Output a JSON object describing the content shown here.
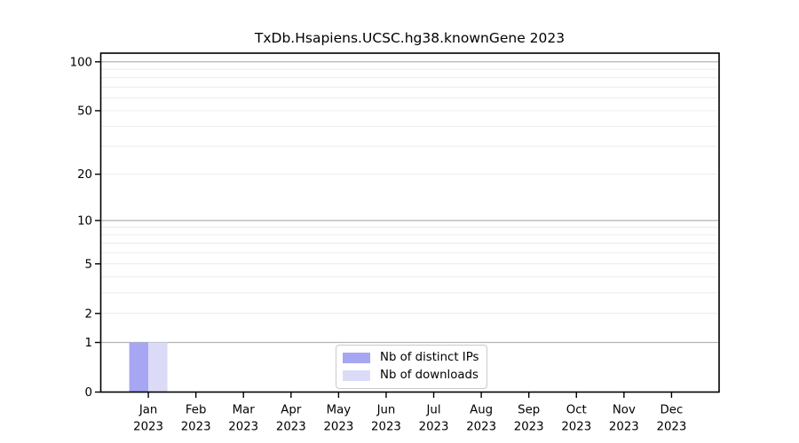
{
  "figure_title": "TxDb.Hsapiens.UCSC.hg38.knownGene 2023",
  "chart_data": {
    "type": "bar",
    "title": "TxDb.Hsapiens.UCSC.hg38.knownGene 2023",
    "categories": [
      "Jan 2023",
      "Feb 2023",
      "Mar 2023",
      "Apr 2023",
      "May 2023",
      "Jun 2023",
      "Jul 2023",
      "Aug 2023",
      "Sep 2023",
      "Oct 2023",
      "Nov 2023",
      "Dec 2023"
    ],
    "x_tick_labels": [
      {
        "month": "Jan",
        "year": "2023"
      },
      {
        "month": "Feb",
        "year": "2023"
      },
      {
        "month": "Mar",
        "year": "2023"
      },
      {
        "month": "Apr",
        "year": "2023"
      },
      {
        "month": "May",
        "year": "2023"
      },
      {
        "month": "Jun",
        "year": "2023"
      },
      {
        "month": "Jul",
        "year": "2023"
      },
      {
        "month": "Aug",
        "year": "2023"
      },
      {
        "month": "Sep",
        "year": "2023"
      },
      {
        "month": "Oct",
        "year": "2023"
      },
      {
        "month": "Nov",
        "year": "2023"
      },
      {
        "month": "Dec",
        "year": "2023"
      }
    ],
    "series": [
      {
        "name": "Nb of distinct IPs",
        "color": "#a6a6f2",
        "values": [
          1,
          0,
          0,
          0,
          0,
          0,
          0,
          0,
          0,
          0,
          0,
          0
        ]
      },
      {
        "name": "Nb of downloads",
        "color": "#dbdbf8",
        "values": [
          1,
          0,
          0,
          0,
          0,
          0,
          0,
          0,
          0,
          0,
          0,
          0
        ]
      }
    ],
    "xlabel": "",
    "ylabel": "",
    "yscale": "log1p",
    "ylim": [
      0,
      113
    ],
    "ytick_values": [
      0,
      1,
      2,
      5,
      10,
      20,
      50,
      100
    ],
    "ytick_labels": [
      "0",
      "1",
      "2",
      "5",
      "10",
      "20",
      "50",
      "100"
    ],
    "grid": {
      "major_values": [
        1,
        10,
        100
      ],
      "minor_values": [
        2,
        3,
        4,
        5,
        6,
        7,
        8,
        9,
        20,
        30,
        40,
        50,
        60,
        70,
        80,
        90
      ],
      "major_color": "#b3b3b3",
      "minor_color": "#ececec"
    },
    "legend_position": "lower center",
    "legend_entries": [
      "Nb of distinct IPs",
      "Nb of downloads"
    ]
  },
  "colors": {
    "background": "#ffffff",
    "spine": "#000000",
    "text": "#000000"
  }
}
